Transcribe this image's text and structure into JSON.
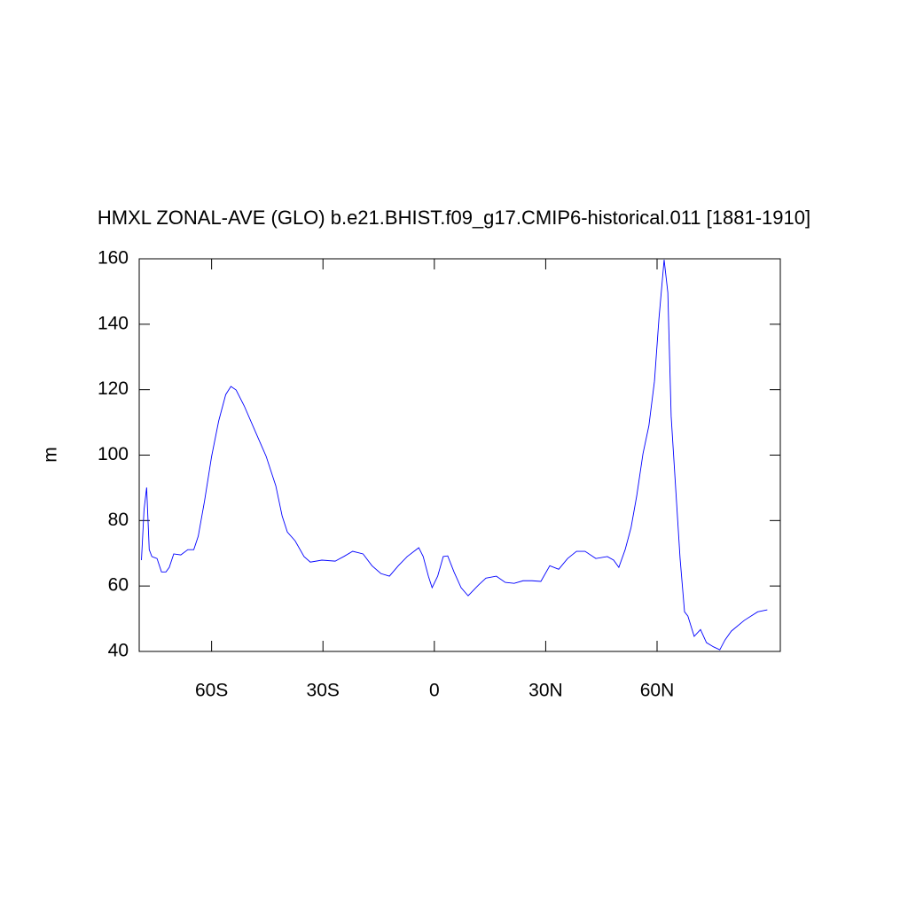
{
  "chart_data": {
    "type": "line",
    "title": "HMXL ZONAL-AVE (GLO) b.e21.BHIST.f09_g17.CMIP6-historical.011 [1881-1910]",
    "y_label": "m",
    "xlim": [
      -79.5,
      93.2
    ],
    "ylim": [
      40,
      160
    ],
    "xticks": [
      {
        "value": -60,
        "label": "60S"
      },
      {
        "value": -30,
        "label": "30S"
      },
      0,
      {
        "value": 30,
        "label": "30N"
      },
      {
        "value": 60,
        "label": "60N"
      }
    ],
    "yticks": [
      40,
      60,
      80,
      100,
      120,
      140,
      160
    ],
    "x": [
      -78.9,
      -78.2,
      -77.5,
      -76.8,
      -76.1,
      -74.7,
      -73.5,
      -72.3,
      -71.4,
      -70.2,
      -68.3,
      -66.4,
      -64.8,
      -63.6,
      -61.9,
      -60,
      -58.1,
      -56.2,
      -54.8,
      -53.4,
      -51.2,
      -48.1,
      -45.3,
      -42.7,
      -41,
      -39.6,
      -37.5,
      -35.1,
      -33.4,
      -30.3,
      -26.7,
      -24.4,
      -22,
      -19.2,
      -16.8,
      -14.4,
      -12.1,
      -9.7,
      -7.3,
      -4.2,
      -3,
      -1.6,
      -0.6,
      0.9,
      2.4,
      3.6,
      5.3,
      7.2,
      9.1,
      11.9,
      13.9,
      16.7,
      19.1,
      21.5,
      23.9,
      26.3,
      28.7,
      31.1,
      33.5,
      35.9,
      38.3,
      40.6,
      43.5,
      46.6,
      48.3,
      49.7,
      51.4,
      53,
      54.5,
      56.2,
      57.8,
      59.3,
      60.5,
      61.9,
      62.9,
      63.8,
      65,
      66.2,
      67.4,
      68.3,
      70,
      71.7,
      73.3,
      75.2,
      76.9,
      78.3,
      80,
      83.5,
      87.1,
      89.7
    ],
    "series": [
      {
        "color": "#0000ff",
        "values": [
          67.9,
          83.3,
          90.1,
          71.1,
          69,
          68.4,
          64.3,
          64.3,
          65.7,
          69.8,
          69.5,
          71.1,
          71.1,
          75.2,
          86,
          99.6,
          110.4,
          118.5,
          121,
          119.9,
          115,
          106.9,
          99.6,
          90.6,
          81.4,
          76.5,
          73.8,
          69,
          67.3,
          67.9,
          67.6,
          69,
          70.6,
          69.8,
          66.2,
          63.8,
          63,
          66.2,
          69,
          71.7,
          69,
          63,
          59.5,
          63,
          69,
          69.2,
          64.3,
          59.5,
          57,
          60.3,
          62.4,
          63,
          61.1,
          60.8,
          61.6,
          61.6,
          61.4,
          66.2,
          65.1,
          68.4,
          70.6,
          70.6,
          68.4,
          69,
          67.9,
          65.7,
          71.1,
          77.9,
          87.4,
          100.4,
          109,
          122.6,
          141.6,
          159.7,
          149.7,
          111.8,
          90.1,
          68.4,
          52.1,
          50.8,
          44.6,
          46.7,
          42.7,
          41.4,
          40.5,
          43.5,
          46.2,
          49.5,
          52.1,
          52.7
        ]
      }
    ]
  }
}
